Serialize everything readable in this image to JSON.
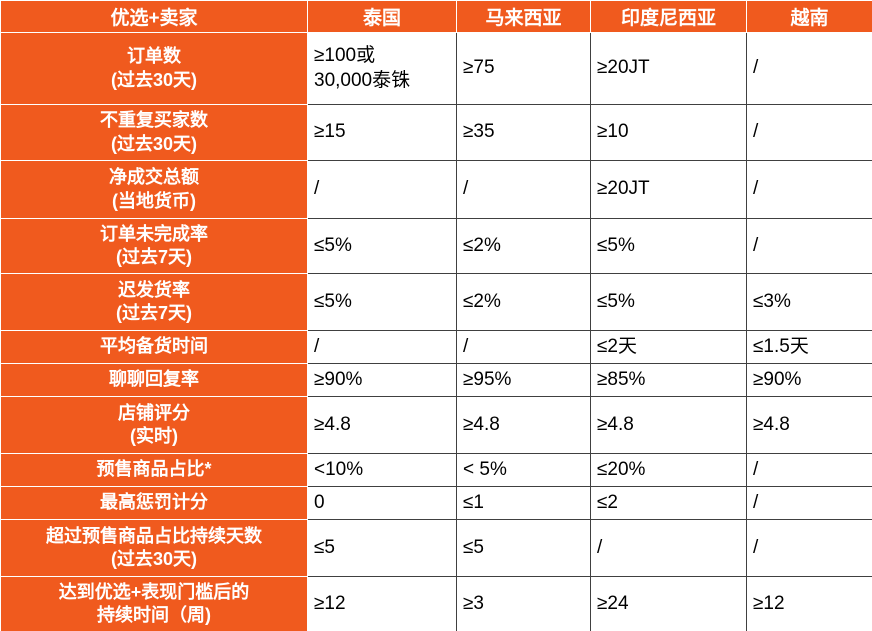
{
  "header": [
    "优选+卖家",
    "泰国",
    "马来西亚",
    "印度尼西亚",
    "越南"
  ],
  "rows": [
    {
      "label": "订单数\n(过去30天)",
      "values": [
        "≥100或\n30,000泰铢",
        "≥75",
        "≥20JT",
        "/"
      ]
    },
    {
      "label": "不重复买家数\n(过去30天)",
      "values": [
        "≥15",
        "≥35",
        "≥10",
        "/"
      ]
    },
    {
      "label": "净成交总额\n(当地货币)",
      "values": [
        "/",
        "/",
        "≥20JT",
        "/"
      ]
    },
    {
      "label": "订单未完成率\n(过去7天)",
      "values": [
        "≤5%",
        "≤2%",
        "≤5%",
        "/"
      ]
    },
    {
      "label": "迟发货率\n(过去7天)",
      "values": [
        "≤5%",
        "≤2%",
        "≤5%",
        "≤3%"
      ]
    },
    {
      "label": "平均备货时间",
      "values": [
        "/",
        "/",
        "≤2天",
        "≤1.5天"
      ]
    },
    {
      "label": "聊聊回复率",
      "values": [
        "≥90%",
        "≥95%",
        "≥85%",
        "≥90%"
      ]
    },
    {
      "label": "店铺评分\n(实时)",
      "values": [
        "≥4.8",
        "≥4.8",
        "≥4.8",
        "≥4.8"
      ]
    },
    {
      "label": "预售商品占比*",
      "values": [
        "<10%",
        "< 5%",
        "≤20%",
        "/"
      ]
    },
    {
      "label": "最高惩罚计分",
      "values": [
        "0",
        "≤1",
        "≤2",
        "/"
      ]
    },
    {
      "label": "超过预售商品占比持续天数\n(过去30天)",
      "values": [
        "≤5",
        "≤5",
        "/",
        "/"
      ]
    },
    {
      "label": "达到优选+表现门槛后的\n持续时间（周)",
      "values": [
        "≥12",
        "≥3",
        "≥24",
        "≥12"
      ]
    }
  ]
}
